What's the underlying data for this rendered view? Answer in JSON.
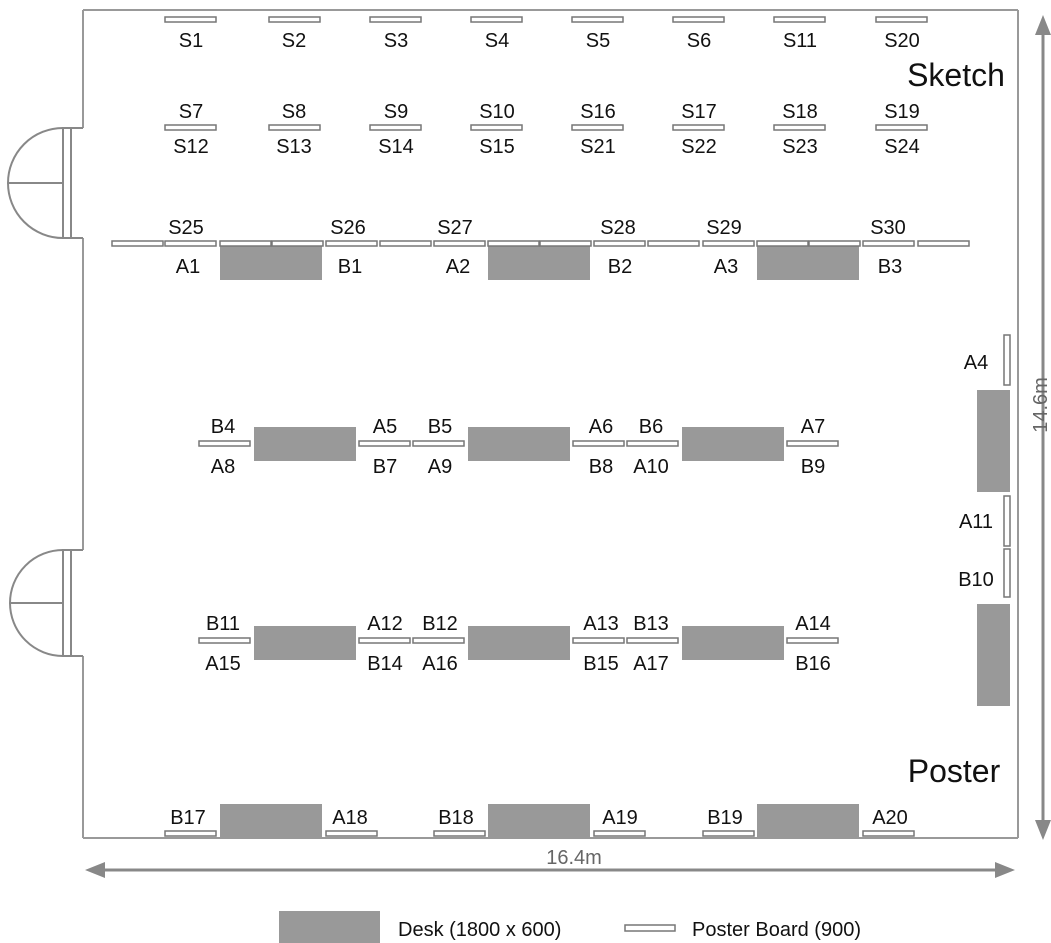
{
  "sections": {
    "sketch": "Sketch",
    "poster": "Poster"
  },
  "dimensions": {
    "width": "16.4m",
    "height": "14.6m"
  },
  "legend": {
    "desk": "Desk (1800 x 600)",
    "poster_board": "Poster Board (900)"
  },
  "labels": [
    "S1",
    "S2",
    "S3",
    "S4",
    "S5",
    "S6",
    "S11",
    "S20",
    "S7",
    "S8",
    "S9",
    "S10",
    "S16",
    "S17",
    "S18",
    "S19",
    "S12",
    "S13",
    "S14",
    "S15",
    "S21",
    "S22",
    "S23",
    "S24",
    "S25",
    "S26",
    "S27",
    "S28",
    "S29",
    "S30",
    "A1",
    "B1",
    "A2",
    "B2",
    "A3",
    "B3",
    "B4",
    "A5",
    "B5",
    "A6",
    "B6",
    "A7",
    "A8",
    "B7",
    "A9",
    "B8",
    "A10",
    "B9",
    "B11",
    "A12",
    "B12",
    "A13",
    "B13",
    "A14",
    "A15",
    "B14",
    "A16",
    "B15",
    "A17",
    "B16",
    "B17",
    "A18",
    "B18",
    "A19",
    "B19",
    "A20",
    "A4",
    "A11",
    "B10"
  ]
}
